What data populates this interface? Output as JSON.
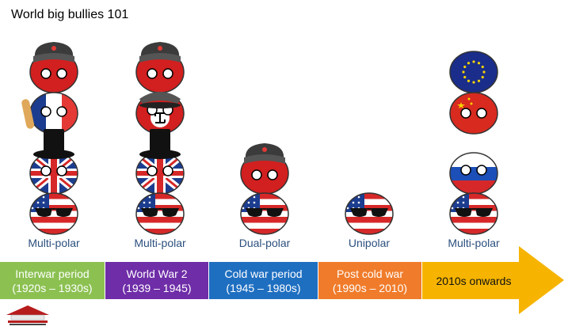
{
  "title": "World big bullies 101",
  "colors": {
    "interwar": "#8cc152",
    "ww2": "#6f2da8",
    "coldwar": "#1f6fc1",
    "postcold": "#f07c2b",
    "modern": "#f6b400",
    "label": "#2b4f7e"
  },
  "columns": [
    {
      "polarity": "Multi-polar",
      "period": "Interwar period",
      "years": "(1920s – 1930s)",
      "balls": [
        "ussr",
        "france",
        "uk",
        "usa"
      ]
    },
    {
      "polarity": "Multi-polar",
      "period": "World War 2",
      "years": "(1939 – 1945)",
      "balls": [
        "ussr",
        "germany",
        "uk",
        "usa"
      ]
    },
    {
      "polarity": "Dual-polar",
      "period": "Cold war period",
      "years": "(1945 – 1980s)",
      "balls": [
        "ussr",
        "usa"
      ]
    },
    {
      "polarity": "Unipolar",
      "period": "Post cold war",
      "years": "(1990s – 2010)",
      "balls": [
        "usa"
      ]
    },
    {
      "polarity": "Multi-polar",
      "period": "2010s onwards",
      "years": "",
      "balls": [
        "eu",
        "china",
        "russia",
        "usa"
      ]
    }
  ],
  "logo": "watermark-logo"
}
